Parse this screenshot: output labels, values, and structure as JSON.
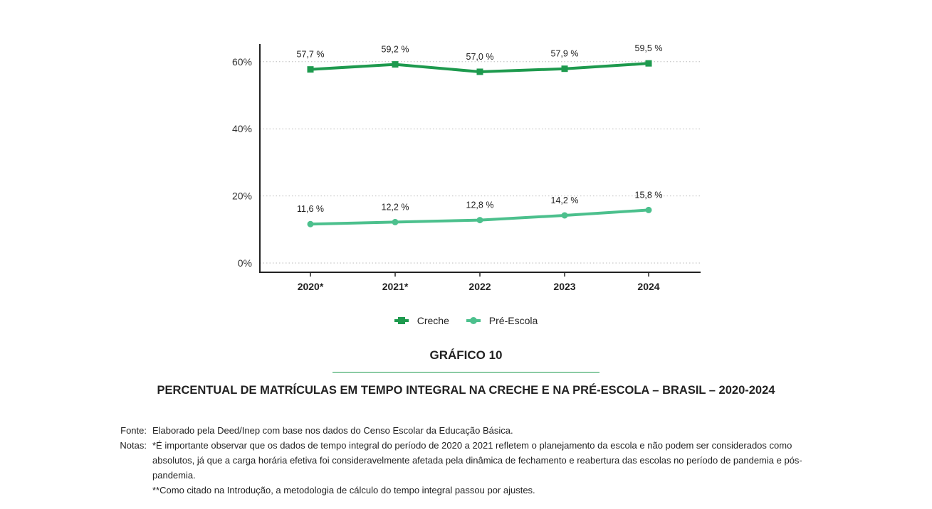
{
  "chart_data": {
    "type": "line",
    "categories": [
      "2020*",
      "2021*",
      "2022",
      "2023",
      "2024"
    ],
    "series": [
      {
        "name": "Creche",
        "values": [
          57.7,
          59.2,
          57.0,
          57.9,
          59.5
        ],
        "labels": [
          "57,7 %",
          "59,2 %",
          "57,0 %",
          "57,9 %",
          "59,5 %"
        ],
        "color": "#1e9a4e",
        "marker": "square"
      },
      {
        "name": "Pré-Escola",
        "values": [
          11.6,
          12.2,
          12.8,
          14.2,
          15.8
        ],
        "labels": [
          "11,6 %",
          "12,2 %",
          "12,8 %",
          "14,2 %",
          "15,8 %"
        ],
        "color": "#4cc08d",
        "marker": "circle"
      }
    ],
    "yticks": [
      0,
      20,
      40,
      60
    ],
    "ytick_labels": [
      "0%",
      "20%",
      "40%",
      "60%"
    ],
    "ylim": [
      0,
      65
    ],
    "grid": true,
    "legend_position": "bottom-center"
  },
  "figure": {
    "number": "GRÁFICO 10",
    "title": "PERCENTUAL DE MATRÍCULAS EM TEMPO INTEGRAL NA CRECHE E NA PRÉ-ESCOLA – BRASIL – 2020-2024"
  },
  "notes": {
    "source_label": "Fonte:",
    "source_text": "Elaborado pela Deed/Inep com base nos dados do Censo Escolar da Educação Básica.",
    "notes_label": "Notas:",
    "note1": "*É importante observar que os dados de tempo integral do período de 2020 a 2021 refletem o planejamento da escola e não podem ser considerados como absolutos, já que a carga horária efetiva foi consideravelmente afetada pela dinâmica de fechamento e reabertura das escolas no período de pandemia e pós-pandemia.",
    "note2": "**Como citado na Introdução, a metodologia de cálculo do tempo integral passou por ajustes."
  }
}
